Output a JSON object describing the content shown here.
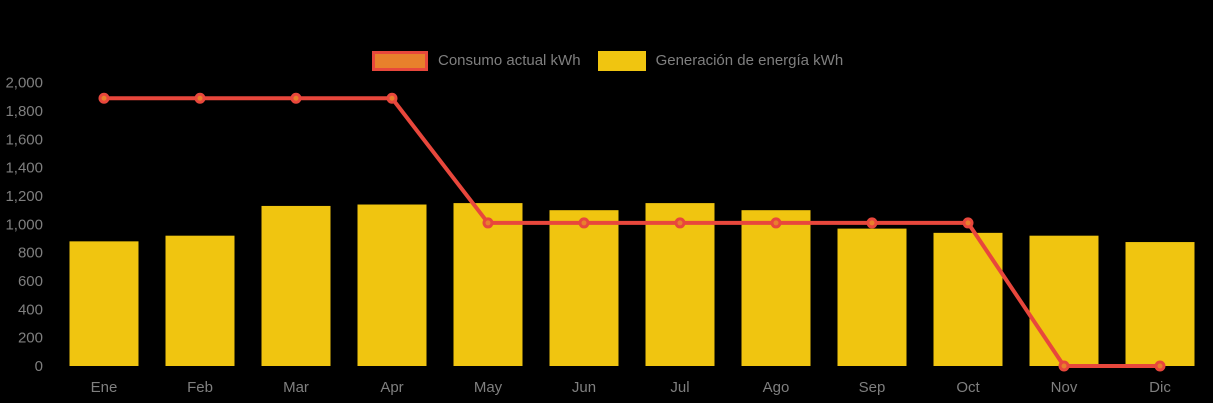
{
  "legend": {
    "items": [
      {
        "label": "Consumo actual kWh",
        "swatch": "orange-rect-red-border"
      },
      {
        "label": "Generación de energía kWh",
        "swatch": "yellow-rect"
      }
    ]
  },
  "colors": {
    "background": "#000000",
    "bar": "#F0C510",
    "line": "#E8473C",
    "marker_fill": "#E8802C",
    "text": "#7F7F7F"
  },
  "chart_data": {
    "type": "bar+line",
    "categories": [
      "Ene",
      "Feb",
      "Mar",
      "Apr",
      "May",
      "Jun",
      "Jul",
      "Ago",
      "Sep",
      "Oct",
      "Nov",
      "Dic"
    ],
    "series": [
      {
        "name": "Consumo actual kWh",
        "type": "line",
        "color": "#E8473C",
        "values": [
          1890,
          1890,
          1890,
          1890,
          1010,
          1010,
          1010,
          1010,
          1010,
          1010,
          0,
          0
        ]
      },
      {
        "name": "Generación de energía kWh",
        "type": "bar",
        "color": "#F0C510",
        "values": [
          880,
          920,
          1130,
          1140,
          1150,
          1100,
          1150,
          1100,
          970,
          940,
          920,
          875
        ]
      }
    ],
    "title": "",
    "xlabel": "",
    "ylabel": "",
    "ylim": [
      0,
      2000
    ],
    "ytick_step": 200,
    "y_tick_labels": [
      "0",
      "200",
      "400",
      "600",
      "800",
      "1,000",
      "1,200",
      "1,400",
      "1,600",
      "1,800",
      "2,000"
    ],
    "grid": false,
    "legend_position": "top-center"
  }
}
